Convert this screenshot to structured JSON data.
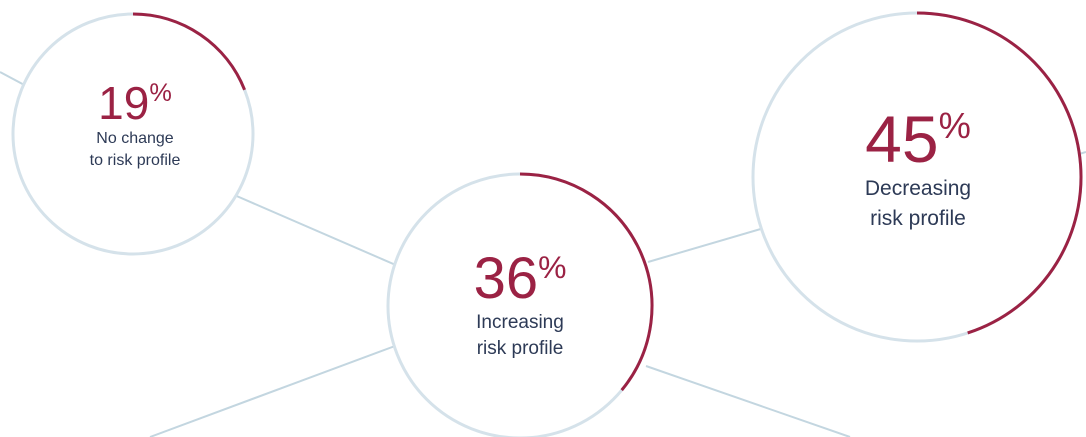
{
  "colors": {
    "ring": "#d5e2ea",
    "connector": "#c3d6e0",
    "accent": "#9b2244",
    "text": "#2d3a56"
  },
  "chart_data": {
    "type": "pie",
    "title": "",
    "unit": "%",
    "slices": [
      {
        "value": 19,
        "label_line1": "No change",
        "label_line2": "to risk profile"
      },
      {
        "value": 36,
        "label_line1": "Increasing",
        "label_line2": "risk profile"
      },
      {
        "value": 45,
        "label_line1": "Decreasing",
        "label_line2": "risk profile"
      }
    ]
  }
}
